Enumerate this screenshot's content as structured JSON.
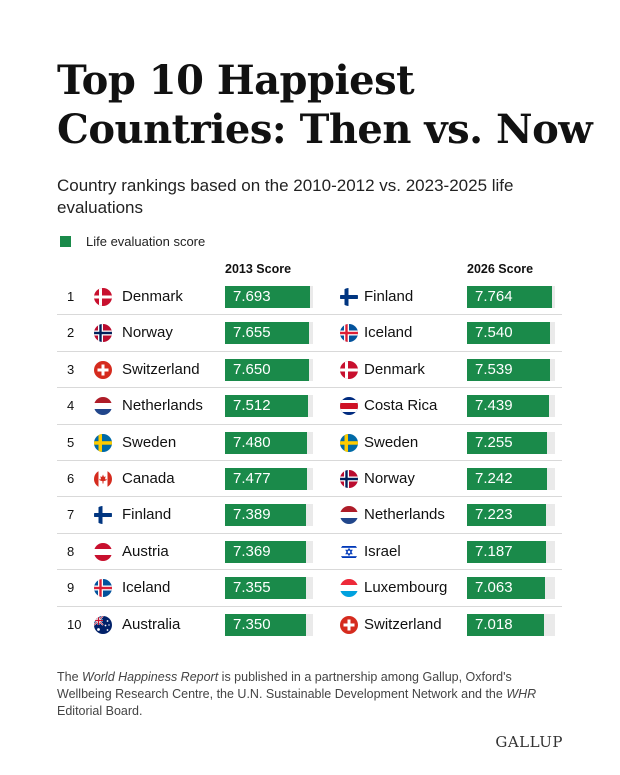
{
  "title": "Top 10 Happiest Countries: Then vs. Now",
  "subtitle": "Country rankings based on the 2010-2012 vs. 2023-2025 life evaluations",
  "legend_label": "Life evaluation score",
  "colors": {
    "bar": "#1a8a4a",
    "track": "#eaeaea"
  },
  "footnote": {
    "pre": "The ",
    "report_title": "World Happiness Report",
    "mid": " is published in a partnership among Gallup, Oxford's Wellbeing Research Centre, the U.N. Sustainable Development Network and the ",
    "whr": "WHR",
    "post": " Editorial Board."
  },
  "logo": "GALLUP",
  "chart_data": {
    "type": "table",
    "title": "Top 10 Happiest Countries: Then vs. Now",
    "series_names": [
      "2013 Score",
      "2026 Score"
    ],
    "bar_scale_max": 8.0,
    "rows": [
      {
        "rank": "1",
        "left": {
          "country": "Denmark",
          "flag": "denmark-flag",
          "score": "7.693"
        },
        "right": {
          "country": "Finland",
          "flag": "finland-flag",
          "score": "7.764"
        }
      },
      {
        "rank": "2",
        "left": {
          "country": "Norway",
          "flag": "norway-flag",
          "score": "7.655"
        },
        "right": {
          "country": "Iceland",
          "flag": "iceland-flag",
          "score": "7.540"
        }
      },
      {
        "rank": "3",
        "left": {
          "country": "Switzerland",
          "flag": "switzerland-flag",
          "score": "7.650"
        },
        "right": {
          "country": "Denmark",
          "flag": "denmark-flag",
          "score": "7.539"
        }
      },
      {
        "rank": "4",
        "left": {
          "country": "Netherlands",
          "flag": "netherlands-flag",
          "score": "7.512"
        },
        "right": {
          "country": "Costa Rica",
          "flag": "costa-rica-flag",
          "score": "7.439"
        }
      },
      {
        "rank": "5",
        "left": {
          "country": "Sweden",
          "flag": "sweden-flag",
          "score": "7.480"
        },
        "right": {
          "country": "Sweden",
          "flag": "sweden-flag",
          "score": "7.255"
        }
      },
      {
        "rank": "6",
        "left": {
          "country": "Canada",
          "flag": "canada-flag",
          "score": "7.477"
        },
        "right": {
          "country": "Norway",
          "flag": "norway-flag",
          "score": "7.242"
        }
      },
      {
        "rank": "7",
        "left": {
          "country": "Finland",
          "flag": "finland-flag",
          "score": "7.389"
        },
        "right": {
          "country": "Netherlands",
          "flag": "netherlands-flag",
          "score": "7.223"
        }
      },
      {
        "rank": "8",
        "left": {
          "country": "Austria",
          "flag": "austria-flag",
          "score": "7.369"
        },
        "right": {
          "country": "Israel",
          "flag": "israel-flag",
          "score": "7.187"
        }
      },
      {
        "rank": "9",
        "left": {
          "country": "Iceland",
          "flag": "iceland-flag",
          "score": "7.355"
        },
        "right": {
          "country": "Luxembourg",
          "flag": "luxembourg-flag",
          "score": "7.063"
        }
      },
      {
        "rank": "10",
        "left": {
          "country": "Australia",
          "flag": "australia-flag",
          "score": "7.350"
        },
        "right": {
          "country": "Switzerland",
          "flag": "switzerland-flag",
          "score": "7.018"
        }
      }
    ]
  }
}
